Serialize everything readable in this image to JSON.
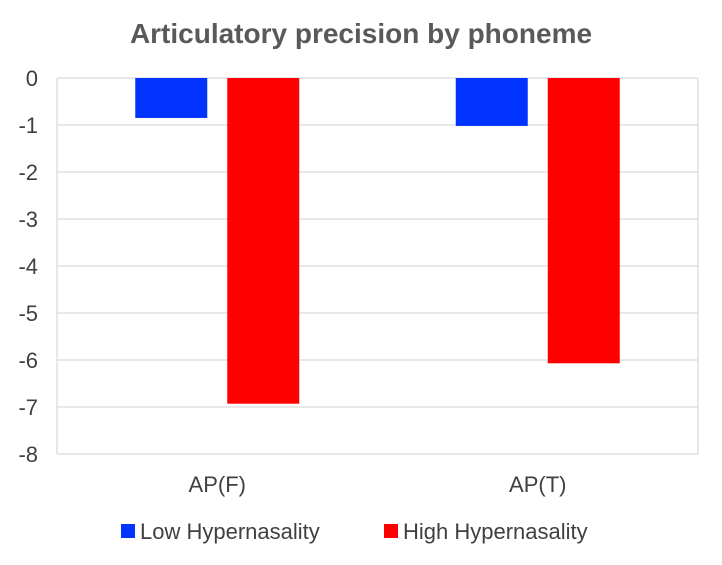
{
  "chart_data": {
    "type": "bar",
    "title": "Articulatory precision by phoneme",
    "categories": [
      "AP(F)",
      "AP(T)"
    ],
    "series": [
      {
        "name": "Low Hypernasality",
        "values": [
          -0.85,
          -1.02
        ],
        "color": "#0033ff"
      },
      {
        "name": "High Hypernasality",
        "values": [
          -6.93,
          -6.07
        ],
        "color": "#ff0000"
      }
    ],
    "ylim": [
      -8,
      0
    ],
    "yticks": [
      0,
      -1,
      -2,
      -3,
      -4,
      -5,
      -6,
      -7,
      -8
    ],
    "grid": true,
    "legend_position": "bottom"
  }
}
